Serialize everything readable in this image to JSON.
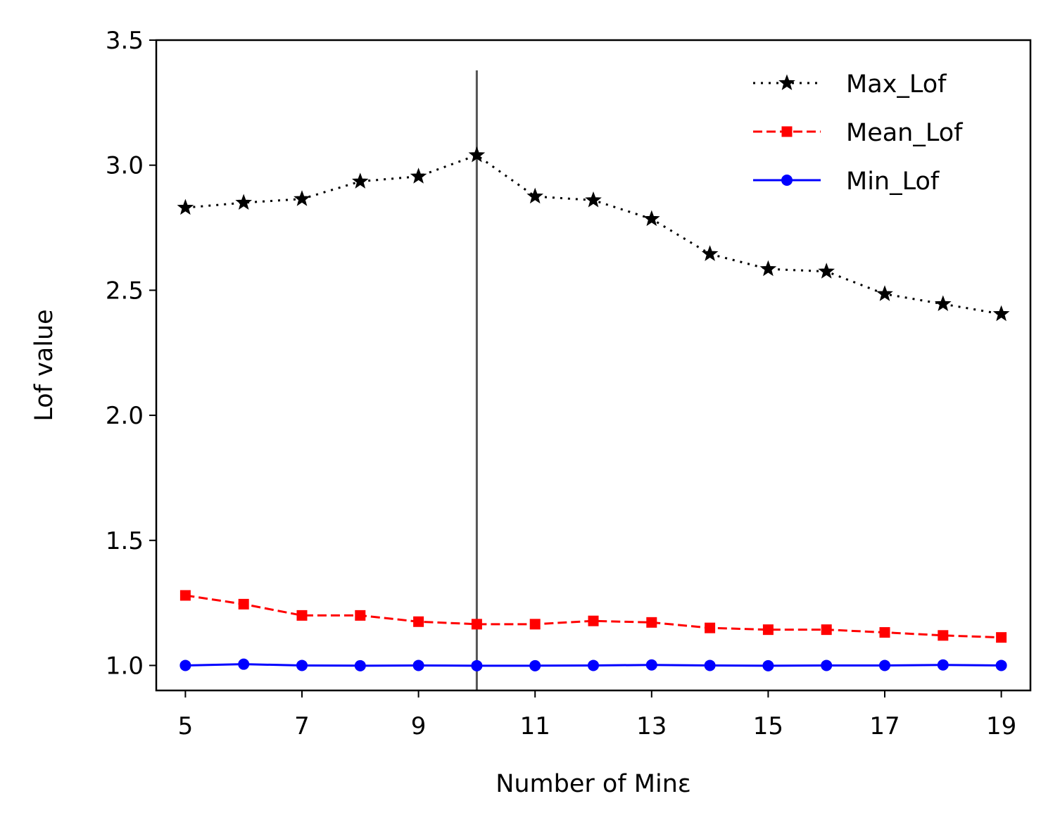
{
  "chart_data": {
    "type": "line",
    "xlabel": "Number of Minε",
    "ylabel": "Lof value",
    "xlim": [
      4.5,
      19.5
    ],
    "ylim": [
      0.9,
      3.5
    ],
    "xticks": [
      5,
      7,
      9,
      11,
      13,
      15,
      17,
      19
    ],
    "yticks": [
      1.0,
      1.5,
      2.0,
      2.5,
      3.0,
      3.5
    ],
    "ytick_labels": [
      "1.0",
      "1.5",
      "2.0",
      "2.5",
      "3.0",
      "3.5"
    ],
    "grid": false,
    "legend_position": "top-right",
    "vline": {
      "x": 10,
      "color": "#555555"
    },
    "x": [
      5,
      6,
      7,
      8,
      9,
      10,
      11,
      12,
      13,
      14,
      15,
      16,
      17,
      18,
      19
    ],
    "series": [
      {
        "name": "Max_Lof",
        "color": "#000000",
        "linestyle": "dotted",
        "marker": "star",
        "values": [
          2.83,
          2.85,
          2.865,
          2.935,
          2.955,
          3.04,
          2.875,
          2.86,
          2.785,
          2.645,
          2.585,
          2.575,
          2.485,
          2.445,
          2.405
        ]
      },
      {
        "name": "Mean_Lof",
        "color": "#ff0000",
        "linestyle": "dashed",
        "marker": "square",
        "values": [
          1.28,
          1.245,
          1.2,
          1.2,
          1.175,
          1.165,
          1.165,
          1.178,
          1.172,
          1.15,
          1.143,
          1.143,
          1.132,
          1.12,
          1.112
        ]
      },
      {
        "name": "Min_Lof",
        "color": "#0000ff",
        "linestyle": "solid",
        "marker": "circle",
        "values": [
          1.0,
          1.005,
          1.0,
          0.999,
          1.0,
          0.999,
          0.999,
          1.0,
          1.002,
          1.0,
          0.999,
          1.0,
          1.0,
          1.002,
          1.0
        ]
      }
    ]
  }
}
